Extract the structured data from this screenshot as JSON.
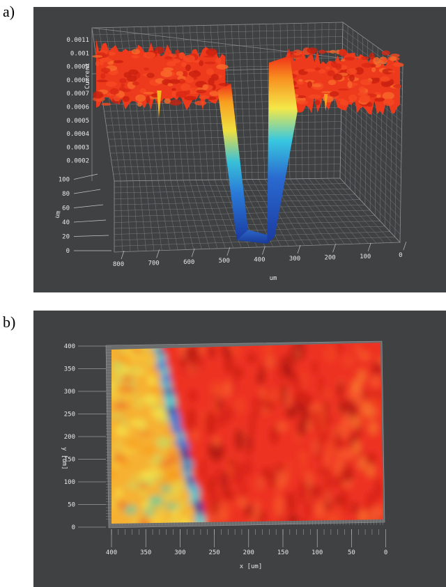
{
  "panels": {
    "a": {
      "letter": "a)"
    },
    "b": {
      "letter": "b)"
    }
  },
  "chart_data": [
    {
      "type": "surface",
      "panel": "a)",
      "title": "",
      "zlabel": "Current",
      "xlabel": "um",
      "ylabel": "um",
      "x_ticks": [
        "800",
        "700",
        "600",
        "500",
        "400",
        "300",
        "200",
        "100",
        "0"
      ],
      "y_ticks": [
        "0",
        "20",
        "40",
        "60",
        "80",
        "100"
      ],
      "z_ticks": [
        "0.0002",
        "0.0003",
        "0.0004",
        "0.0005",
        "0.0006",
        "0.0007",
        "0.0008",
        "0.0009",
        "0.001",
        "0.0011"
      ],
      "xlim": [
        800,
        0
      ],
      "ylim": [
        0,
        100
      ],
      "zlim": [
        0.0002,
        0.0011
      ],
      "profile_x": [
        800,
        750,
        700,
        650,
        600,
        550,
        500,
        470,
        450,
        420,
        400,
        380,
        350,
        330,
        300,
        280,
        250,
        200,
        150,
        100,
        50,
        0
      ],
      "profile_current": [
        0.001,
        0.00098,
        0.00097,
        0.00099,
        0.00098,
        0.00096,
        0.00094,
        0.0009,
        0.0006,
        0.0004,
        0.00025,
        0.0002,
        0.0002,
        0.0003,
        0.0006,
        0.00095,
        0.001,
        0.00098,
        0.00097,
        0.00096,
        0.00095,
        0.00093
      ],
      "colormap": [
        "#1a3aa0",
        "#2a7ad8",
        "#38c0d8",
        "#f0e040",
        "#f8a020",
        "#f03018"
      ],
      "grid": true
    },
    {
      "type": "heatmap",
      "panel": "b)",
      "title": "",
      "xlabel": "x [um]",
      "ylabel": "y [um]",
      "x_ticks": [
        "400",
        "350",
        "300",
        "250",
        "200",
        "150",
        "100",
        "50",
        "0"
      ],
      "y_ticks": [
        "0",
        "50",
        "100",
        "150",
        "200",
        "250",
        "300",
        "350",
        "400"
      ],
      "xlim": [
        400,
        0
      ],
      "ylim": [
        0,
        400
      ],
      "boundary_x_at_y400": [
        330,
        320
      ],
      "boundary_x_at_y0": [
        255,
        240
      ],
      "colormap": [
        "#1a3aa0",
        "#2a7ad8",
        "#38c0d8",
        "#f0e040",
        "#f8a020",
        "#f03018"
      ],
      "grid": false
    }
  ]
}
